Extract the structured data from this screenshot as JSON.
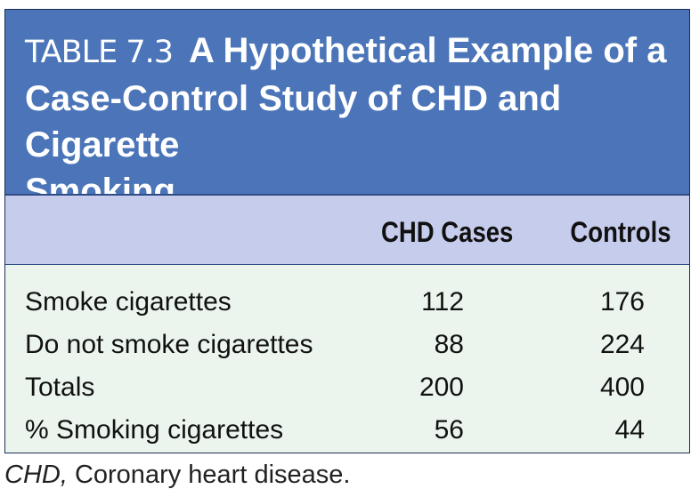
{
  "table": {
    "number_label": "TABLE 7.3",
    "title_lines": [
      "A Hypothetical Example of a",
      "Case-Control Study of CHD and Cigarette",
      "Smoking"
    ],
    "columns": [
      "CHD Cases",
      "Controls"
    ],
    "rows": [
      {
        "label": "Smoke cigarettes",
        "cases": "112",
        "controls": "176"
      },
      {
        "label": "Do not smoke cigarettes",
        "cases": "88",
        "controls": "224"
      },
      {
        "label": "Totals",
        "cases": "200",
        "controls": "400"
      },
      {
        "label": "% Smoking cigarettes",
        "cases": "56",
        "controls": "44"
      }
    ]
  },
  "footnote": {
    "abbreviation": "CHD,",
    "expansion": "Coronary heart disease."
  },
  "colors": {
    "title_band": "#4b75b8",
    "header_band": "#c6ccec",
    "body_band": "#ebf5ee"
  }
}
